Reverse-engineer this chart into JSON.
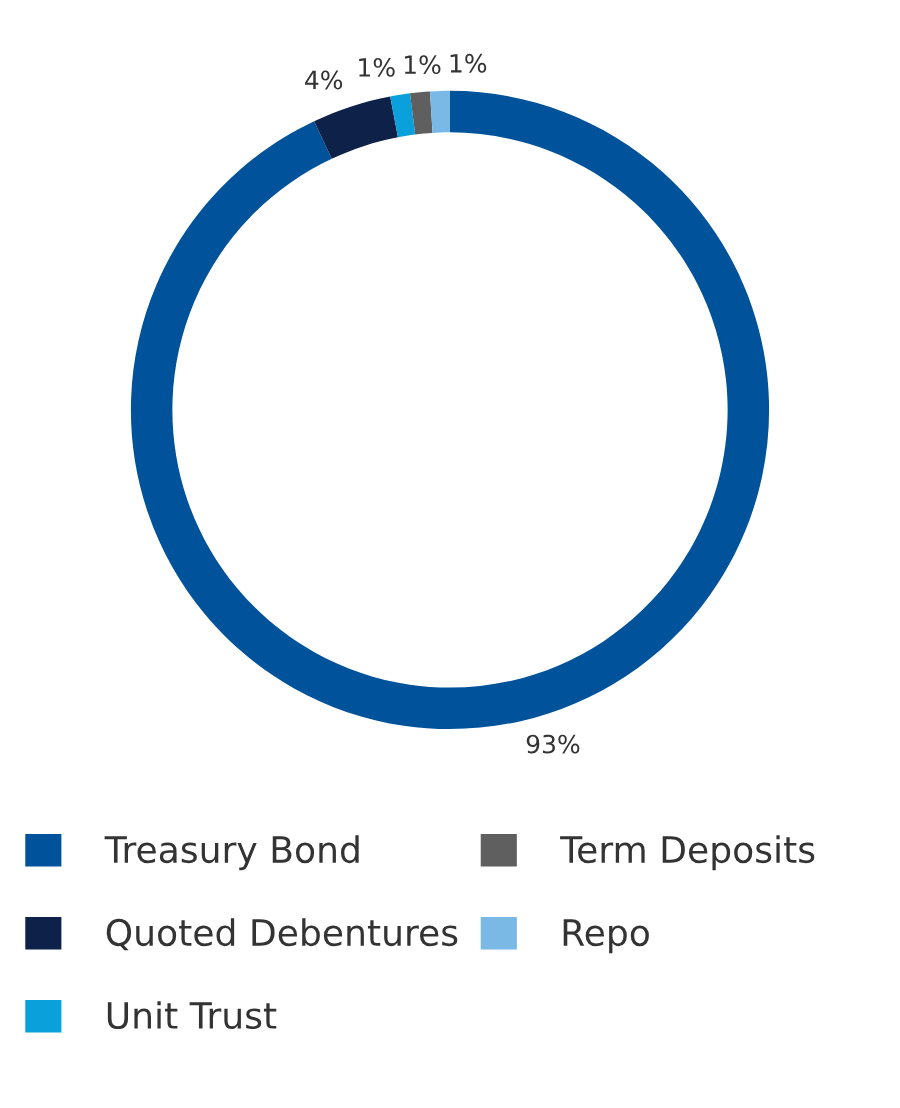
{
  "chart_data": {
    "type": "donut",
    "categories": [
      "Treasury Bond",
      "Quoted Debentures",
      "Unit Trust",
      "Term Deposits",
      "Repo"
    ],
    "values": [
      93,
      4,
      1,
      1,
      1
    ],
    "colors": [
      "#00529b",
      "#0d2149",
      "#0aa0dc",
      "#5f5f5f",
      "#7ab8e6"
    ],
    "value_labels": [
      "93%",
      "4%",
      "1%",
      "1%",
      "1%"
    ],
    "legend": "bottom"
  }
}
